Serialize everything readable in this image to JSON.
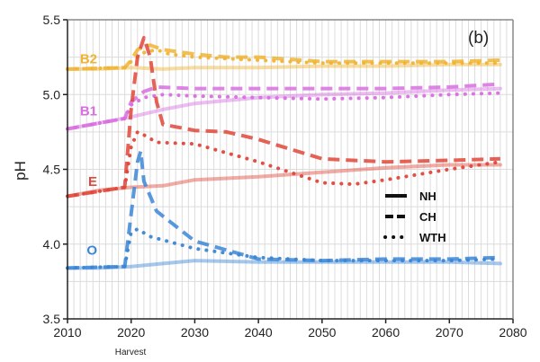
{
  "chart_data": {
    "type": "line",
    "panel_label": "(b)",
    "ylabel": "pH",
    "xlabel": "",
    "xlim": [
      2010,
      2080
    ],
    "ylim": [
      3.5,
      5.5
    ],
    "x_ticks": [
      "2010",
      "2020",
      "2030",
      "2040",
      "2050",
      "2060",
      "2070",
      "2080"
    ],
    "y_ticks": [
      "3.5",
      "4.0",
      "4.5",
      "5.0",
      "5.5"
    ],
    "harvest_label": "Harvest",
    "harvest_year": 2020,
    "grid": true,
    "legend": {
      "position": "center-right",
      "entries": [
        {
          "label": "NH",
          "style": "solid"
        },
        {
          "label": "CH",
          "style": "dashed"
        },
        {
          "label": "WTH",
          "style": "dotted"
        }
      ]
    },
    "horizons": [
      {
        "name": "B2",
        "color": "#f0b432",
        "label_y": 5.24,
        "NH": [
          [
            2010,
            5.17
          ],
          [
            2015,
            5.17
          ],
          [
            2020,
            5.18
          ],
          [
            2025,
            5.17
          ],
          [
            2030,
            5.18
          ],
          [
            2040,
            5.18
          ],
          [
            2050,
            5.19
          ],
          [
            2060,
            5.19
          ],
          [
            2070,
            5.2
          ],
          [
            2078,
            5.2
          ]
        ],
        "CH": [
          [
            2010,
            5.17
          ],
          [
            2019,
            5.18
          ],
          [
            2020,
            5.23
          ],
          [
            2021,
            5.3
          ],
          [
            2022,
            5.32
          ],
          [
            2023,
            5.33
          ],
          [
            2025,
            5.3
          ],
          [
            2030,
            5.27
          ],
          [
            2035,
            5.25
          ],
          [
            2040,
            5.25
          ],
          [
            2050,
            5.22
          ],
          [
            2060,
            5.22
          ],
          [
            2070,
            5.22
          ],
          [
            2078,
            5.23
          ]
        ],
        "WTH": [
          [
            2010,
            5.17
          ],
          [
            2019,
            5.18
          ],
          [
            2020,
            5.22
          ],
          [
            2022,
            5.28
          ],
          [
            2024,
            5.3
          ],
          [
            2026,
            5.27
          ],
          [
            2030,
            5.25
          ],
          [
            2040,
            5.23
          ],
          [
            2050,
            5.21
          ],
          [
            2060,
            5.21
          ],
          [
            2070,
            5.21
          ],
          [
            2078,
            5.21
          ]
        ]
      },
      {
        "name": "B1",
        "color": "#d86ee0",
        "label_y": 4.89,
        "NH": [
          [
            2010,
            4.77
          ],
          [
            2015,
            4.81
          ],
          [
            2020,
            4.85
          ],
          [
            2025,
            4.9
          ],
          [
            2030,
            4.94
          ],
          [
            2040,
            4.98
          ],
          [
            2050,
            5.0
          ],
          [
            2060,
            5.01
          ],
          [
            2070,
            5.03
          ],
          [
            2078,
            5.04
          ]
        ],
        "CH": [
          [
            2010,
            4.77
          ],
          [
            2019,
            4.84
          ],
          [
            2020,
            4.95
          ],
          [
            2022,
            5.02
          ],
          [
            2024,
            5.05
          ],
          [
            2030,
            5.04
          ],
          [
            2040,
            5.04
          ],
          [
            2050,
            5.04
          ],
          [
            2060,
            5.04
          ],
          [
            2070,
            5.05
          ],
          [
            2078,
            5.07
          ]
        ],
        "WTH": [
          [
            2010,
            4.77
          ],
          [
            2019,
            4.84
          ],
          [
            2020,
            4.93
          ],
          [
            2022,
            4.98
          ],
          [
            2025,
            5.0
          ],
          [
            2030,
            4.99
          ],
          [
            2040,
            4.98
          ],
          [
            2050,
            4.97
          ],
          [
            2060,
            4.98
          ],
          [
            2070,
            5.0
          ],
          [
            2078,
            5.01
          ]
        ]
      },
      {
        "name": "E",
        "color": "#e0473a",
        "label_y": 4.42,
        "NH": [
          [
            2010,
            4.32
          ],
          [
            2015,
            4.36
          ],
          [
            2020,
            4.38
          ],
          [
            2025,
            4.39
          ],
          [
            2030,
            4.43
          ],
          [
            2040,
            4.45
          ],
          [
            2050,
            4.48
          ],
          [
            2060,
            4.51
          ],
          [
            2070,
            4.53
          ],
          [
            2078,
            4.53
          ]
        ],
        "CH": [
          [
            2010,
            4.32
          ],
          [
            2019,
            4.38
          ],
          [
            2020,
            4.9
          ],
          [
            2021,
            5.25
          ],
          [
            2022,
            5.38
          ],
          [
            2023,
            5.25
          ],
          [
            2024,
            4.95
          ],
          [
            2025,
            4.8
          ],
          [
            2030,
            4.76
          ],
          [
            2035,
            4.75
          ],
          [
            2040,
            4.7
          ],
          [
            2050,
            4.57
          ],
          [
            2060,
            4.55
          ],
          [
            2070,
            4.56
          ],
          [
            2078,
            4.57
          ]
        ],
        "WTH": [
          [
            2010,
            4.32
          ],
          [
            2019,
            4.38
          ],
          [
            2020,
            4.65
          ],
          [
            2021,
            4.75
          ],
          [
            2022,
            4.73
          ],
          [
            2024,
            4.68
          ],
          [
            2030,
            4.67
          ],
          [
            2040,
            4.55
          ],
          [
            2050,
            4.41
          ],
          [
            2055,
            4.4
          ],
          [
            2060,
            4.43
          ],
          [
            2070,
            4.5
          ],
          [
            2078,
            4.55
          ]
        ]
      },
      {
        "name": "O",
        "color": "#3b86d6",
        "label_y": 3.96,
        "NH": [
          [
            2010,
            3.84
          ],
          [
            2015,
            3.84
          ],
          [
            2020,
            3.85
          ],
          [
            2025,
            3.87
          ],
          [
            2030,
            3.89
          ],
          [
            2040,
            3.88
          ],
          [
            2050,
            3.88
          ],
          [
            2060,
            3.88
          ],
          [
            2070,
            3.88
          ],
          [
            2078,
            3.87
          ]
        ],
        "CH": [
          [
            2010,
            3.84
          ],
          [
            2019,
            3.85
          ],
          [
            2020,
            4.2
          ],
          [
            2021,
            4.55
          ],
          [
            2021.5,
            4.62
          ],
          [
            2022,
            4.42
          ],
          [
            2024,
            4.22
          ],
          [
            2030,
            4.02
          ],
          [
            2040,
            3.9
          ],
          [
            2050,
            3.89
          ],
          [
            2060,
            3.9
          ],
          [
            2070,
            3.9
          ],
          [
            2078,
            3.91
          ]
        ],
        "WTH": [
          [
            2010,
            3.84
          ],
          [
            2019,
            3.85
          ],
          [
            2020,
            4.08
          ],
          [
            2021,
            4.1
          ],
          [
            2023,
            4.05
          ],
          [
            2030,
            3.97
          ],
          [
            2040,
            3.91
          ],
          [
            2050,
            3.89
          ],
          [
            2060,
            3.89
          ],
          [
            2070,
            3.89
          ],
          [
            2078,
            3.9
          ]
        ]
      }
    ]
  }
}
